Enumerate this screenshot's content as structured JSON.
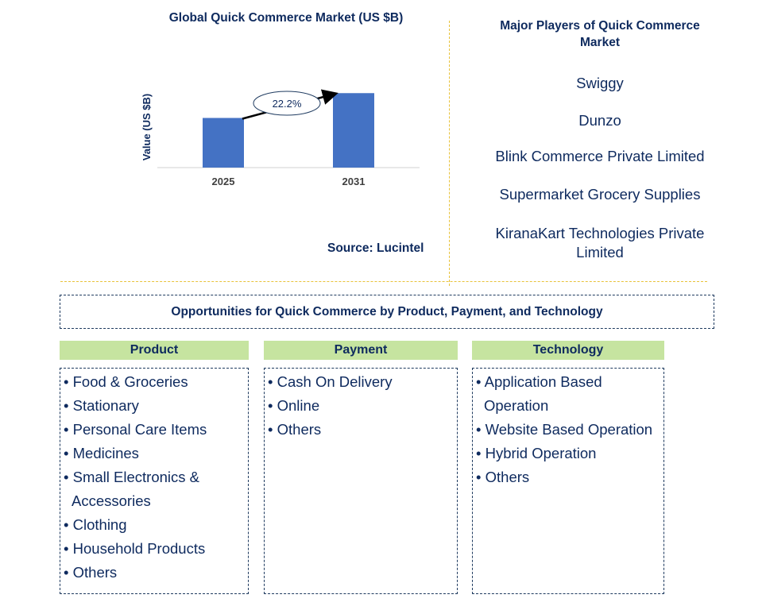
{
  "chart_data": {
    "type": "bar",
    "title": "Global Quick Commerce Market (US $B)",
    "categories": [
      "2025",
      "2031"
    ],
    "values": [
      1,
      1.5
    ],
    "ylabel": "Value (US $B)",
    "xlabel": "",
    "ylim": [
      0,
      1.6
    ],
    "annotation": "22.2%",
    "bar_color": "#4472c4",
    "source": "Source: Lucintel"
  },
  "players": {
    "title": "Major Players of Quick Commerce Market",
    "items": [
      "Swiggy",
      "Dunzo",
      "Blink Commerce Private Limited",
      "Supermarket Grocery Supplies",
      "KiranaKart Technologies Private Limited"
    ]
  },
  "opportunities": {
    "title": "Opportunities for Quick Commerce by Product, Payment, and Technology",
    "product": {
      "header": "Product",
      "items": [
        "Food & Groceries",
        "Stationary",
        "Personal Care Items",
        "Medicines",
        "Small Electronics & Accessories",
        "Clothing",
        "Household Products",
        "Others"
      ]
    },
    "payment": {
      "header": "Payment",
      "items": [
        "Cash On Delivery",
        "Online",
        "Others"
      ]
    },
    "technology": {
      "header": "Technology",
      "items": [
        "Application Based Operation",
        "Website Based Operation",
        "Hybrid Operation",
        "Others"
      ]
    }
  }
}
